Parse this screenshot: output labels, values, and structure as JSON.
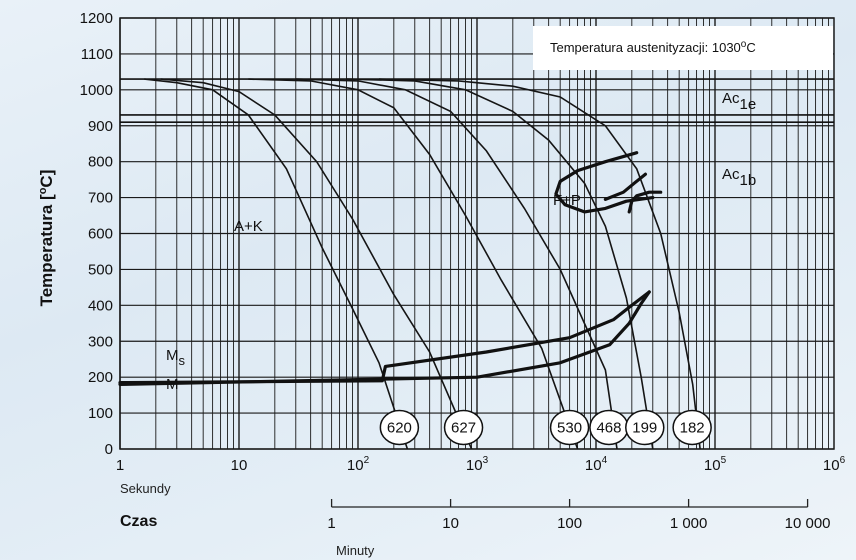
{
  "chart_data": {
    "type": "line",
    "title": "",
    "ylabel": "Temperatura [°C]",
    "ylabel_parts": {
      "main": "Temperatura [",
      "sup": "o",
      "unit": "C]"
    },
    "xscale": "log",
    "xlim": [
      1,
      1000000
    ],
    "ylim": [
      0,
      1200
    ],
    "grid": true,
    "x_ticks": [
      {
        "value": 1,
        "base": "1",
        "exp": ""
      },
      {
        "value": 10,
        "base": "10",
        "exp": ""
      },
      {
        "value": 100,
        "base": "10",
        "exp": "2"
      },
      {
        "value": 1000,
        "base": "10",
        "exp": "3"
      },
      {
        "value": 10000,
        "base": "10",
        "exp": "4"
      },
      {
        "value": 100000,
        "base": "10",
        "exp": "5"
      },
      {
        "value": 1000000,
        "base": "10",
        "exp": "6"
      }
    ],
    "y_ticks": [
      0,
      100,
      200,
      300,
      400,
      500,
      600,
      700,
      800,
      900,
      1000,
      1100,
      1200
    ],
    "y_tick_labels": [
      "0",
      "100",
      "200",
      "300",
      "400",
      "500",
      "600",
      "700",
      "800",
      "900",
      "1000",
      "1100",
      "1200"
    ],
    "x_unit_label": "Sekundy",
    "time_label": "Czas",
    "minutes_axis": {
      "label": "Minuty",
      "ticks": [
        {
          "value": 1,
          "label": "1"
        },
        {
          "value": 10,
          "label": "10"
        },
        {
          "value": 100,
          "label": "100"
        },
        {
          "value": 1000,
          "label": "1 000"
        },
        {
          "value": 10000,
          "label": "10 000"
        }
      ]
    },
    "austenitization_note": {
      "text": "Temperatura austenityzacji: 1030",
      "sup": "o",
      "unit": "C"
    },
    "reference_lines": [
      {
        "label": "Ac",
        "sub": "1e",
        "temperature": 930
      },
      {
        "label": "Ac",
        "sub": "1b",
        "temperature": 910
      },
      {
        "label": "",
        "sub": "",
        "temperature": 1030
      }
    ],
    "ms_label": {
      "main": "M",
      "sub": "s"
    },
    "m_label": "M",
    "region_labels": [
      "A+K",
      "F+P"
    ],
    "cooling_curves": [
      {
        "hardness": "620",
        "points": [
          [
            1.6,
            1030
          ],
          [
            3,
            1020
          ],
          [
            6,
            1000
          ],
          [
            12,
            930
          ],
          [
            25,
            780
          ],
          [
            50,
            560
          ],
          [
            90,
            390
          ],
          [
            150,
            240
          ],
          [
            260,
            0
          ]
        ]
      },
      {
        "hardness": "627",
        "points": [
          [
            2.2,
            1030
          ],
          [
            5,
            1020
          ],
          [
            10,
            995
          ],
          [
            20,
            930
          ],
          [
            45,
            800
          ],
          [
            90,
            640
          ],
          [
            200,
            430
          ],
          [
            400,
            270
          ],
          [
            900,
            0
          ]
        ]
      },
      {
        "hardness": "530",
        "points": [
          [
            12,
            1030
          ],
          [
            40,
            1025
          ],
          [
            100,
            1000
          ],
          [
            200,
            950
          ],
          [
            400,
            820
          ],
          [
            800,
            650
          ],
          [
            1600,
            470
          ],
          [
            3500,
            280
          ],
          [
            7000,
            0
          ]
        ]
      },
      {
        "hardness": "468",
        "points": [
          [
            30,
            1030
          ],
          [
            100,
            1025
          ],
          [
            250,
            1000
          ],
          [
            600,
            940
          ],
          [
            1200,
            830
          ],
          [
            2500,
            670
          ],
          [
            5000,
            500
          ],
          [
            12000,
            220
          ],
          [
            15000,
            0
          ]
        ]
      },
      {
        "hardness": "199",
        "points": [
          [
            80,
            1030
          ],
          [
            300,
            1025
          ],
          [
            800,
            1000
          ],
          [
            2000,
            940
          ],
          [
            4000,
            860
          ],
          [
            8000,
            740
          ],
          [
            12000,
            620
          ],
          [
            18000,
            420
          ],
          [
            24000,
            200
          ],
          [
            30000,
            0
          ]
        ]
      },
      {
        "hardness": "182",
        "points": [
          [
            150,
            1030
          ],
          [
            700,
            1025
          ],
          [
            2000,
            1010
          ],
          [
            5000,
            980
          ],
          [
            12000,
            900
          ],
          [
            22000,
            780
          ],
          [
            35000,
            600
          ],
          [
            50000,
            380
          ],
          [
            65000,
            180
          ],
          [
            75000,
            0
          ]
        ]
      }
    ],
    "phase_boundaries": [
      {
        "name": "Ms-start",
        "points": [
          [
            1,
            185
          ],
          [
            160,
            190
          ],
          [
            170,
            230
          ],
          [
            1200,
            270
          ],
          [
            6000,
            310
          ],
          [
            14000,
            360
          ],
          [
            20000,
            400
          ],
          [
            28000,
            437
          ]
        ]
      },
      {
        "name": "Ms-finish",
        "points": [
          [
            1,
            180
          ],
          [
            1000,
            200
          ],
          [
            5000,
            240
          ],
          [
            13000,
            290
          ],
          [
            19000,
            350
          ],
          [
            24000,
            405
          ],
          [
            28000,
            437
          ]
        ]
      },
      {
        "name": "ferrite-pearlite-start",
        "points": [
          [
            22000,
            825
          ],
          [
            12000,
            800
          ],
          [
            7000,
            775
          ],
          [
            5000,
            745
          ],
          [
            4600,
            710
          ],
          [
            5500,
            680
          ],
          [
            8000,
            660
          ],
          [
            12000,
            670
          ],
          [
            18000,
            690
          ],
          [
            30000,
            700
          ]
        ]
      },
      {
        "name": "ferrite-pearlite-right-1",
        "points": [
          [
            12000,
            695
          ],
          [
            17000,
            715
          ],
          [
            21000,
            740
          ],
          [
            26000,
            765
          ]
        ]
      },
      {
        "name": "ferrite-pearlite-right-2",
        "points": [
          [
            19000,
            660
          ],
          [
            20000,
            690
          ],
          [
            22000,
            705
          ],
          [
            28000,
            715
          ],
          [
            35000,
            715
          ]
        ]
      }
    ],
    "colors": {
      "curve": "#151515",
      "grid": "#1a1a1a",
      "boundary": "#111111"
    }
  }
}
